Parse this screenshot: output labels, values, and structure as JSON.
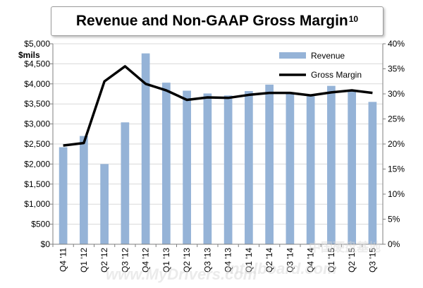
{
  "chart_data": {
    "type": "bar",
    "title": "Revenue and Non-GAAP Gross Margin",
    "title_superscript": "10",
    "ylabel": "$mils",
    "ylim": [
      0,
      5000
    ],
    "y2lim": [
      0,
      40
    ],
    "yticks": [
      "$0",
      "$500",
      "$1,000",
      "$1,500",
      "$2,000",
      "$2,500",
      "$3,000",
      "$3,500",
      "$4,000",
      "$4,500",
      "$5,000"
    ],
    "y2ticks": [
      "0%",
      "5%",
      "10%",
      "15%",
      "20%",
      "25%",
      "30%",
      "35%",
      "40%"
    ],
    "categories": [
      "Q4 '11",
      "Q1 '12",
      "Q2 '12",
      "Q3 '12",
      "Q4 '12",
      "Q1 '13",
      "Q2 '13",
      "Q3 '13",
      "Q4 '13",
      "Q1 '14",
      "Q2 '14",
      "Q3 '14",
      "Q4 '14",
      "Q1 '15",
      "Q2 '15",
      "Q3 '15"
    ],
    "series": [
      {
        "name": "Revenue",
        "type": "bar",
        "axis": "left",
        "color": "#95b3d7",
        "values": [
          2420,
          2700,
          2000,
          3040,
          4760,
          4030,
          3830,
          3760,
          3710,
          3820,
          3980,
          3750,
          3690,
          3950,
          3830,
          3550
        ]
      },
      {
        "name": "Gross Margin",
        "type": "line",
        "axis": "right",
        "color": "#000000",
        "values": [
          19.7,
          20.2,
          32.5,
          35.5,
          32.0,
          30.7,
          28.8,
          29.3,
          29.2,
          29.8,
          30.2,
          30.2,
          29.7,
          30.3,
          30.7,
          30.2
        ]
      }
    ],
    "legend_position": "top-right",
    "grid": true
  },
  "watermark": {
    "text": "www.MyDrivers.com",
    "text2": "中国硬盘基地",
    "text3": "Intelboard.com"
  }
}
